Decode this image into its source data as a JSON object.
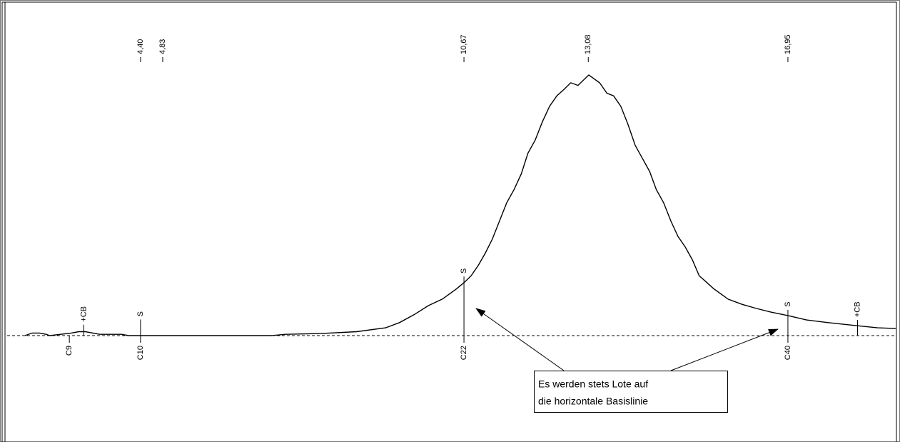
{
  "chart_data": {
    "type": "chromatogram",
    "xlim": [
      2.16,
      19.04
    ],
    "ylim": [
      0,
      100
    ],
    "color": "#000000",
    "trace": {
      "x": [
        2.16,
        2.3,
        2.44,
        2.57,
        2.64,
        3.06,
        3.2,
        3.33,
        3.61,
        4.03,
        4.17,
        6.93,
        7.21,
        7.9,
        8.59,
        9.15,
        9.42,
        9.7,
        9.98,
        10.25,
        10.53,
        10.68,
        10.81,
        10.95,
        11.08,
        11.22,
        11.36,
        11.5,
        11.64,
        11.78,
        11.91,
        12.05,
        12.19,
        12.33,
        12.47,
        12.61,
        12.74,
        12.88,
        13.09,
        13.3,
        13.44,
        13.57,
        13.71,
        13.85,
        13.99,
        14.13,
        14.27,
        14.4,
        14.54,
        14.68,
        14.82,
        14.96,
        15.1,
        15.23,
        15.37,
        15.51,
        15.79,
        16.06,
        16.34,
        16.62,
        16.95,
        17.31,
        17.73,
        18.28,
        18.69,
        19.04
      ],
      "values": [
        0,
        1,
        1,
        0.5,
        0,
        1,
        1.5,
        1.5,
        0.5,
        0.5,
        0,
        0,
        0.5,
        0.8,
        1.5,
        3,
        5,
        8,
        11.5,
        14,
        18,
        20.5,
        23,
        27,
        31.5,
        37,
        44,
        51,
        56,
        62,
        70,
        75,
        82,
        88,
        92,
        94.5,
        97,
        96,
        100,
        97,
        93,
        92,
        88,
        81,
        73,
        68,
        63,
        56,
        51,
        44,
        38,
        34,
        29,
        23,
        20.5,
        18,
        14,
        12,
        10.4,
        9,
        7.7,
        6,
        5,
        3.8,
        3,
        2.7
      ]
    },
    "retention_times": [
      {
        "value": 4.4,
        "label": "4,40"
      },
      {
        "value": 4.83,
        "label": "4,83"
      },
      {
        "value": 10.67,
        "label": "10,67"
      },
      {
        "value": 13.08,
        "label": "13,08"
      },
      {
        "value": 16.95,
        "label": "16,95"
      }
    ],
    "peaks": {
      "x": [
        3.02,
        4.4,
        10.67,
        16.95
      ],
      "labels": [
        "C9",
        "C10",
        "C22",
        "C40"
      ]
    },
    "markers": [
      {
        "label": "+CB",
        "x": 3.3,
        "y": 2
      },
      {
        "label": "S",
        "x": 4.4,
        "y": 4
      },
      {
        "label": "S",
        "x": 10.67,
        "y": 20.5
      },
      {
        "label": "S",
        "x": 16.95,
        "y": 7.7
      },
      {
        "label": "+CB",
        "x": 18.3,
        "y": 3.8
      }
    ],
    "annotation": {
      "lines": [
        "Es werden stets Lote auf",
        "die horizontale Basislinie"
      ]
    }
  }
}
